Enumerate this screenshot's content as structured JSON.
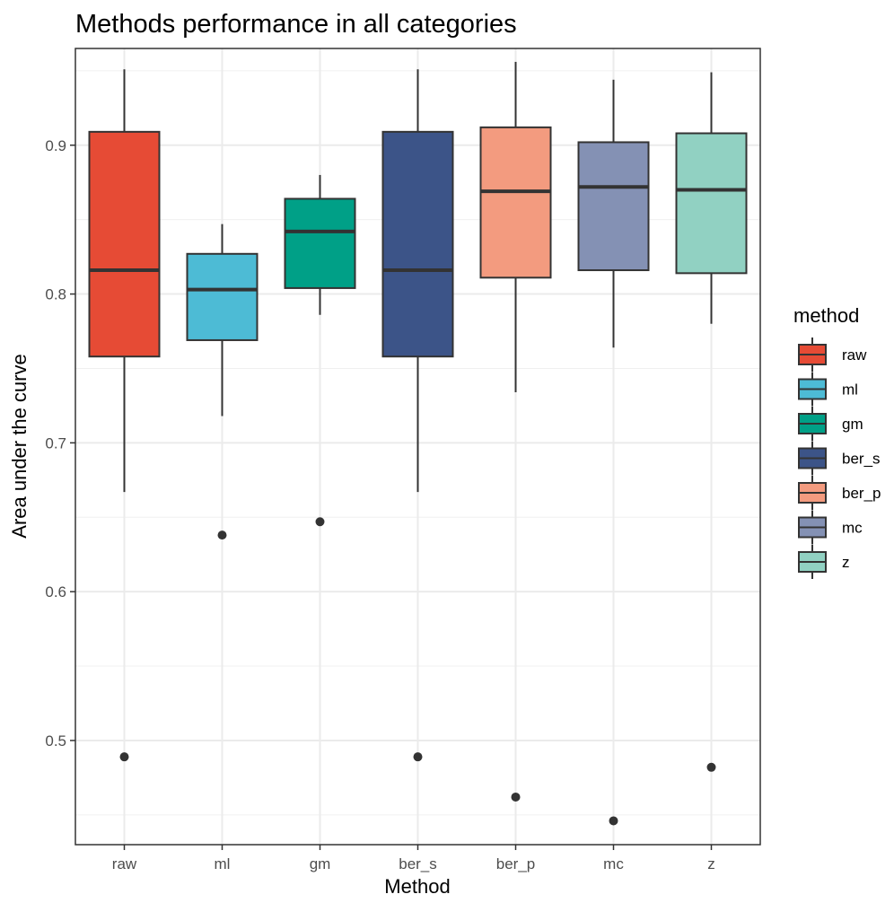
{
  "chart_data": {
    "type": "box",
    "title": "Methods performance in all categories",
    "xlabel": "Method",
    "ylabel": "Area under the curve",
    "ylim": [
      0.43,
      0.965
    ],
    "yticks": [
      0.5,
      0.6,
      0.7,
      0.8,
      0.9
    ],
    "yminor": [
      0.45,
      0.55,
      0.65,
      0.75,
      0.85,
      0.95
    ],
    "grid": true,
    "legend": {
      "title": "method",
      "position": "right"
    },
    "categories": [
      "raw",
      "ml",
      "gm",
      "ber_s",
      "ber_p",
      "mc",
      "z"
    ],
    "series": [
      {
        "name": "raw",
        "color": "#E64B35",
        "whisker_low": 0.667,
        "q1": 0.758,
        "median": 0.816,
        "q3": 0.909,
        "whisker_high": 0.951,
        "outliers": [
          0.489
        ]
      },
      {
        "name": "ml",
        "color": "#4DBBD5",
        "whisker_low": 0.718,
        "q1": 0.769,
        "median": 0.803,
        "q3": 0.827,
        "whisker_high": 0.847,
        "outliers": [
          0.638
        ]
      },
      {
        "name": "gm",
        "color": "#00A087",
        "whisker_low": 0.786,
        "q1": 0.804,
        "median": 0.842,
        "q3": 0.864,
        "whisker_high": 0.88,
        "outliers": [
          0.647
        ]
      },
      {
        "name": "ber_s",
        "color": "#3C5488",
        "whisker_low": 0.667,
        "q1": 0.758,
        "median": 0.816,
        "q3": 0.909,
        "whisker_high": 0.951,
        "outliers": [
          0.489
        ]
      },
      {
        "name": "ber_p",
        "color": "#F39B7F",
        "whisker_low": 0.734,
        "q1": 0.811,
        "median": 0.869,
        "q3": 0.912,
        "whisker_high": 0.956,
        "outliers": [
          0.462
        ]
      },
      {
        "name": "mc",
        "color": "#8491B4",
        "whisker_low": 0.764,
        "q1": 0.816,
        "median": 0.872,
        "q3": 0.902,
        "whisker_high": 0.944,
        "outliers": [
          0.446
        ]
      },
      {
        "name": "z",
        "color": "#91D1C2",
        "whisker_low": 0.78,
        "q1": 0.814,
        "median": 0.87,
        "q3": 0.908,
        "whisker_high": 0.949,
        "outliers": [
          0.482
        ]
      }
    ]
  }
}
